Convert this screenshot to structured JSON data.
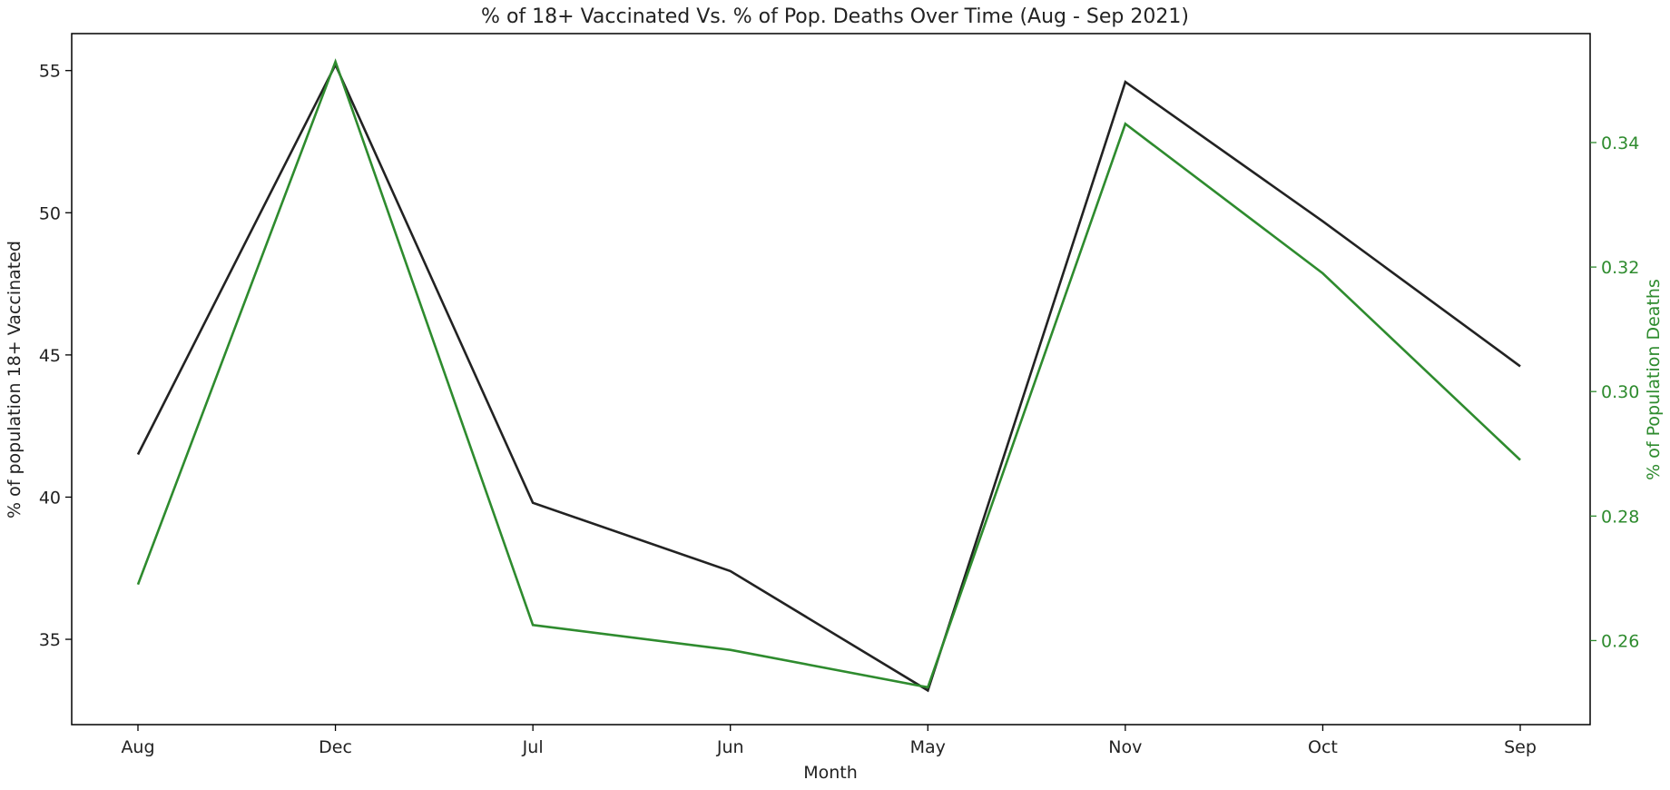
{
  "chart_data": {
    "type": "line",
    "title": "% of 18+ Vaccinated Vs. % of Pop. Deaths Over Time (Aug - Sep 2021)",
    "xlabel": "Month",
    "ylabel": "% of population 18+ Vaccinated",
    "y2label": "% of Population Deaths",
    "categories": [
      "Aug",
      "Dec",
      "Jul",
      "Jun",
      "May",
      "Nov",
      "Oct",
      "Sep"
    ],
    "ylim": [
      32.0,
      56.3
    ],
    "y2lim": [
      0.2465,
      0.3575
    ],
    "yticks": [
      35,
      40,
      45,
      50,
      55
    ],
    "y2ticks": [
      "0.26",
      "0.28",
      "0.30",
      "0.32",
      "0.34"
    ],
    "series": [
      {
        "name": "% of population 18+ Vaccinated",
        "axis": "left",
        "color": "#222222",
        "values": [
          41.5,
          55.2,
          39.8,
          37.4,
          33.2,
          54.6,
          49.7,
          44.6
        ]
      },
      {
        "name": "% of Population Deaths",
        "axis": "right",
        "color": "#2e8b2e",
        "values": [
          0.269,
          0.353,
          0.2625,
          0.2585,
          0.2525,
          0.343,
          0.319,
          0.289
        ]
      }
    ],
    "colors": {
      "axis": "#000000",
      "left_text": "#222222",
      "right_text": "#2e8b2e"
    }
  }
}
